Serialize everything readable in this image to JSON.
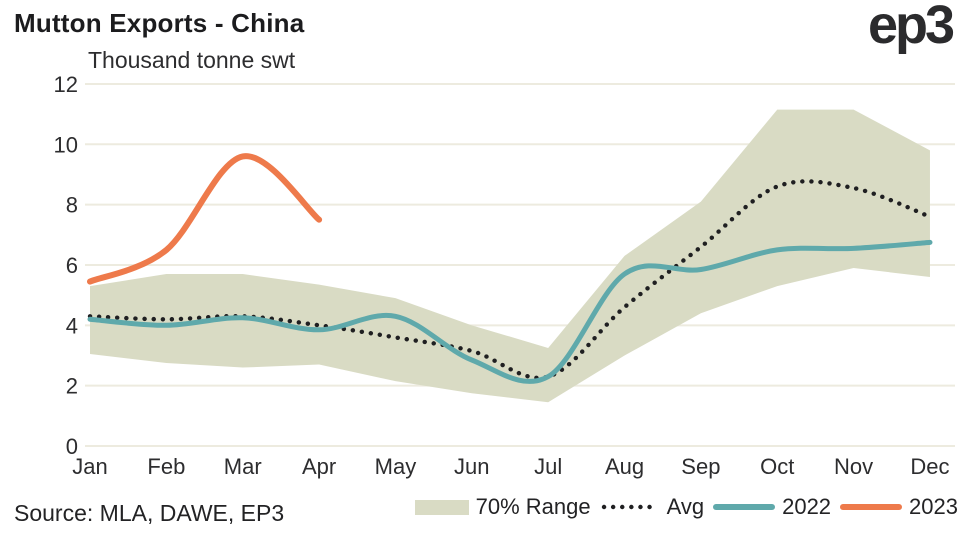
{
  "header": {
    "title": "Mutton Exports - China",
    "logo_text": "ep3"
  },
  "source": "Source: MLA, DAWE, EP3",
  "legend": {
    "range_label": "70% Range",
    "avg_label": "Avg",
    "y2022_label": "2022",
    "y2023_label": "2023"
  },
  "colors": {
    "band": "#d9dbc4",
    "avg": "#1f1f21",
    "y2022": "#5fa9ab",
    "y2023": "#ee7a4b",
    "grid": "#edebdf",
    "axis_text": "#2d2d2f"
  },
  "chart_data": {
    "type": "line",
    "title": "Mutton Exports - China",
    "ylabel": "Thousand tonne swt",
    "xlabel": "",
    "categories": [
      "Jan",
      "Feb",
      "Mar",
      "Apr",
      "May",
      "Jun",
      "Jul",
      "Aug",
      "Sep",
      "Oct",
      "Nov",
      "Dec"
    ],
    "y_ticks": [
      0,
      2,
      4,
      6,
      8,
      10,
      12
    ],
    "ylim": [
      0,
      12
    ],
    "grid": true,
    "legend_position": "bottom",
    "series": [
      {
        "name": "70% Range",
        "type": "band",
        "top": [
          5.3,
          5.7,
          5.7,
          5.35,
          4.9,
          4.0,
          3.25,
          6.3,
          8.1,
          11.15,
          11.15,
          9.8
        ],
        "bottom": [
          3.05,
          2.75,
          2.6,
          2.7,
          2.15,
          1.75,
          1.45,
          3.0,
          4.4,
          5.3,
          5.9,
          5.6
        ]
      },
      {
        "name": "Avg",
        "type": "dotted_line",
        "values": [
          4.3,
          4.2,
          4.3,
          4.0,
          3.6,
          3.15,
          2.3,
          4.6,
          6.6,
          8.6,
          8.55,
          7.6
        ]
      },
      {
        "name": "2022",
        "type": "line",
        "values": [
          4.2,
          4.0,
          4.25,
          3.85,
          4.3,
          2.85,
          2.3,
          5.7,
          5.85,
          6.5,
          6.55,
          6.75
        ]
      },
      {
        "name": "2023",
        "type": "line",
        "values": [
          5.45,
          6.5,
          9.6,
          7.5
        ]
      }
    ]
  }
}
